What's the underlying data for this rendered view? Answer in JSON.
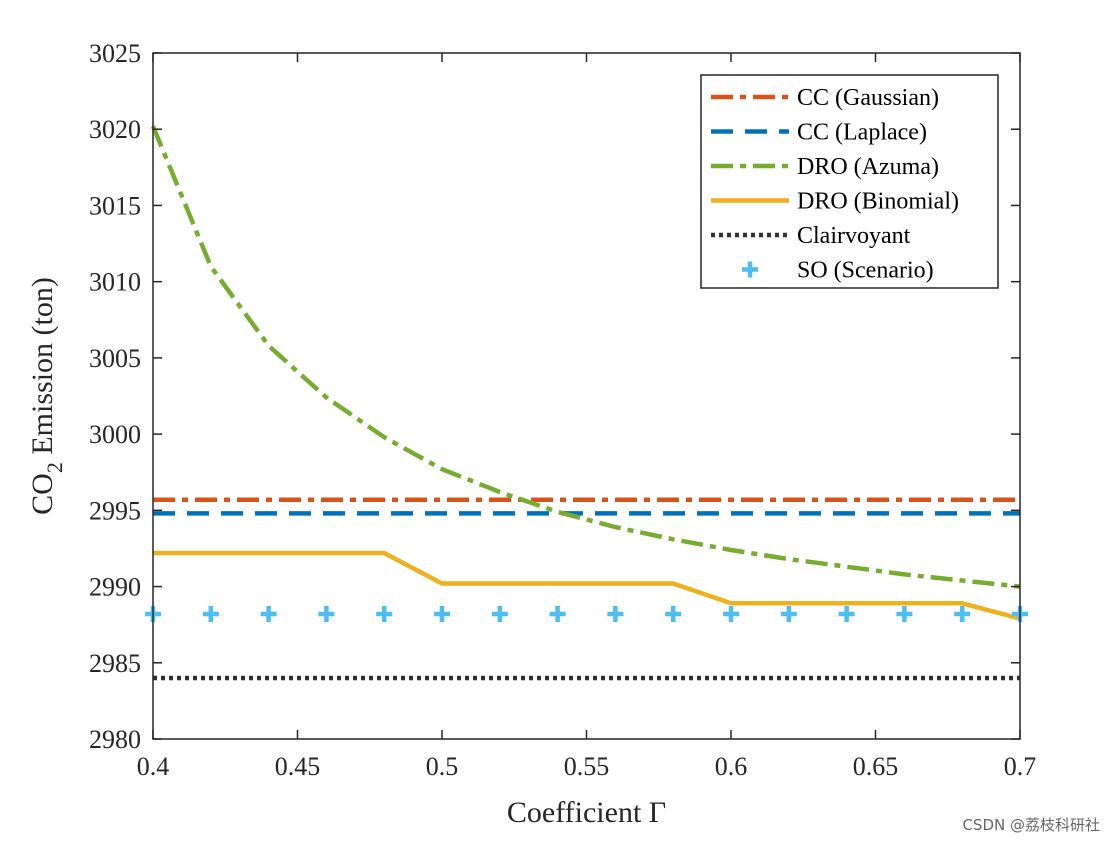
{
  "chart_data": {
    "type": "line",
    "title": "",
    "xlabel": "Coefficient Γ",
    "ylabel_main": "CO",
    "ylabel_sub": "2",
    "ylabel_rest": " Emission (ton)",
    "xlim": [
      0.4,
      0.7
    ],
    "ylim": [
      2980,
      3025
    ],
    "xticks": [
      "0.4",
      "0.45",
      "0.5",
      "0.55",
      "0.6",
      "0.65",
      "0.7"
    ],
    "yticks": [
      "2980",
      "2985",
      "2990",
      "2995",
      "3000",
      "3005",
      "3010",
      "3015",
      "3020",
      "3025"
    ],
    "grid": false,
    "legend_position": "top-right",
    "series": [
      {
        "name": "CC (Gaussian)",
        "color": "#d95319",
        "style": "dashdot",
        "x": [
          0.4,
          0.7
        ],
        "y": [
          2995.7,
          2995.7
        ]
      },
      {
        "name": "CC (Laplace)",
        "color": "#0072bd",
        "style": "dashed",
        "x": [
          0.4,
          0.7
        ],
        "y": [
          2994.8,
          2994.8
        ]
      },
      {
        "name": "DRO (Azuma)",
        "color": "#77ac30",
        "style": "dashdot",
        "x": [
          0.4,
          0.42,
          0.44,
          0.46,
          0.48,
          0.5,
          0.52,
          0.54,
          0.56,
          0.58,
          0.6,
          0.62,
          0.64,
          0.66,
          0.68,
          0.7
        ],
        "y": [
          3020.2,
          3011.0,
          3005.8,
          3002.4,
          2999.8,
          2997.7,
          2996.2,
          2994.9,
          2993.9,
          2993.1,
          2992.4,
          2991.8,
          2991.3,
          2990.8,
          2990.4,
          2990.0
        ]
      },
      {
        "name": "DRO (Binomial)",
        "color": "#edb120",
        "style": "solid",
        "x": [
          0.4,
          0.48,
          0.5,
          0.58,
          0.6,
          0.68,
          0.7
        ],
        "y": [
          2992.2,
          2992.2,
          2990.2,
          2990.2,
          2988.9,
          2988.9,
          2987.9
        ]
      },
      {
        "name": "Clairvoyant",
        "color": "#333333",
        "style": "dotted",
        "x": [
          0.4,
          0.7
        ],
        "y": [
          2984.0,
          2984.0
        ]
      },
      {
        "name": "SO (Scenario)",
        "color": "#4dbeee",
        "style": "plus",
        "x": [
          0.4,
          0.42,
          0.44,
          0.46,
          0.48,
          0.5,
          0.52,
          0.54,
          0.56,
          0.58,
          0.6,
          0.62,
          0.64,
          0.66,
          0.68,
          0.7
        ],
        "y": [
          2988.2,
          2988.2,
          2988.2,
          2988.2,
          2988.2,
          2988.2,
          2988.2,
          2988.2,
          2988.2,
          2988.2,
          2988.2,
          2988.2,
          2988.2,
          2988.2,
          2988.2,
          2988.2
        ]
      }
    ]
  },
  "watermark": "CSDN @荔枝科研社"
}
